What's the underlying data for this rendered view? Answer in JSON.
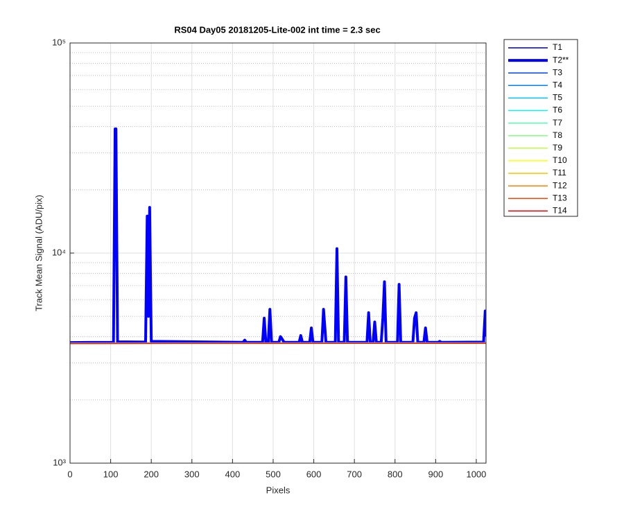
{
  "chart_data": {
    "type": "line",
    "title": "RS04 Day05 20181205-Lite-002 int time = 2.3 sec",
    "x_label": "Pixels",
    "y_label": "Track Mean Signal (ADU/pix)",
    "log_y": true,
    "grid": true,
    "minor_grid": true,
    "legend": "outside-right",
    "xlim": [
      0,
      1024
    ],
    "xticks": [
      0,
      100,
      200,
      300,
      400,
      500,
      600,
      700,
      800,
      900,
      1000
    ],
    "ylim": [
      1000,
      100000
    ],
    "yticks": [
      {
        "value": 1000,
        "label": "10³"
      },
      {
        "value": 10000,
        "label": "10⁴"
      },
      {
        "value": 100000,
        "label": "10⁵"
      }
    ],
    "yminor": [
      2000,
      3000,
      4000,
      5000,
      6000,
      7000,
      8000,
      9000,
      20000,
      30000,
      40000,
      50000,
      60000,
      70000,
      80000,
      90000
    ],
    "series": [
      {
        "name": "T1",
        "color": "#00008f",
        "x": [
          0,
          1024
        ],
        "values": [
          3740,
          3750
        ]
      },
      {
        "name": "T2**",
        "color": "#0000ff",
        "line_width": 4,
        "x": [
          0,
          107,
          111,
          113,
          117,
          186,
          190,
          193,
          196,
          200,
          426,
          430,
          434,
          474,
          478,
          482,
          488,
          492,
          496,
          514,
          518,
          522,
          527,
          564,
          568,
          572,
          590,
          594,
          598,
          620,
          624,
          627,
          630,
          653,
          657,
          661,
          675,
          679,
          683,
          731,
          735,
          739,
          746,
          750,
          754,
          766,
          770,
          774,
          778,
          806,
          810,
          814,
          844,
          848,
          852,
          856,
          871,
          875,
          879,
          906,
          910,
          914,
          1018,
          1022,
          1024
        ],
        "values": [
          3750,
          3760,
          39000,
          39000,
          3780,
          3770,
          15000,
          5000,
          16500,
          3800,
          3760,
          3850,
          3760,
          3760,
          4900,
          3760,
          3760,
          5400,
          3760,
          3760,
          4000,
          3900,
          3760,
          3760,
          4050,
          3760,
          3760,
          4400,
          3760,
          3760,
          5400,
          4500,
          3760,
          3760,
          10500,
          3760,
          3760,
          7700,
          3760,
          3760,
          5200,
          3760,
          3760,
          4700,
          3760,
          3760,
          4900,
          7300,
          3760,
          3760,
          7100,
          3760,
          3760,
          4900,
          5200,
          3760,
          3760,
          4400,
          3760,
          3760,
          3800,
          3760,
          3770,
          5300,
          4000
        ]
      },
      {
        "name": "T3",
        "color": "#0040ff",
        "x": [
          0,
          1024
        ],
        "values": [
          3735,
          3745
        ]
      },
      {
        "name": "T4",
        "color": "#0080ff",
        "x": [
          0,
          1024
        ],
        "values": [
          3730,
          3740
        ]
      },
      {
        "name": "T5",
        "color": "#00bfff",
        "x": [
          0,
          1024
        ],
        "values": [
          3730,
          3740
        ]
      },
      {
        "name": "T6",
        "color": "#10efef",
        "x": [
          0,
          1024
        ],
        "values": [
          3725,
          3735
        ]
      },
      {
        "name": "T7",
        "color": "#50ffaf",
        "x": [
          0,
          1024
        ],
        "values": [
          3725,
          3735
        ]
      },
      {
        "name": "T8",
        "color": "#80ff80",
        "x": [
          0,
          1024
        ],
        "values": [
          3720,
          3730
        ]
      },
      {
        "name": "T9",
        "color": "#bfff40",
        "x": [
          0,
          1024
        ],
        "values": [
          3720,
          3730
        ]
      },
      {
        "name": "T10",
        "color": "#ffff00",
        "x": [
          0,
          1024
        ],
        "values": [
          3715,
          3725
        ]
      },
      {
        "name": "T11",
        "color": "#ffbf00",
        "x": [
          0,
          1024
        ],
        "values": [
          3715,
          3725
        ]
      },
      {
        "name": "T12",
        "color": "#ff8000",
        "x": [
          0,
          1024
        ],
        "values": [
          3710,
          3720
        ]
      },
      {
        "name": "T13",
        "color": "#ff4000",
        "x": [
          0,
          1024
        ],
        "values": [
          3710,
          3720
        ]
      },
      {
        "name": "T14",
        "color": "#ff0000",
        "x": [
          0,
          1024
        ],
        "values": [
          3705,
          3715
        ]
      }
    ]
  }
}
